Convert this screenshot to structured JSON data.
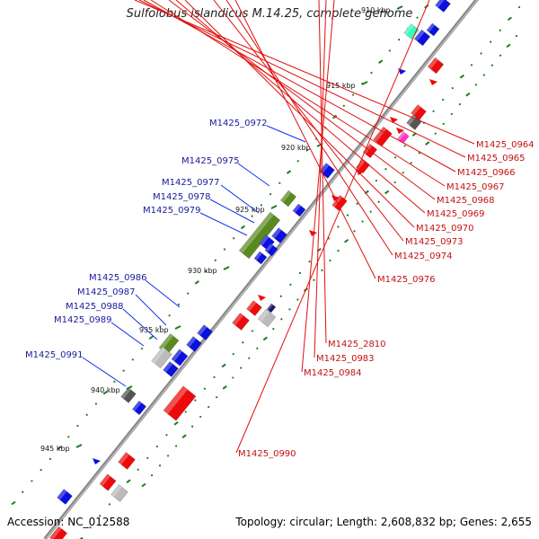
{
  "title": "Sulfolobus islandicus M.14.25, complete genome",
  "footer": {
    "accession": "Accession: NC_012588",
    "topology": "Topology: circular; Length: 2,608,832 bp; Genes: 2,655"
  },
  "colors": {
    "backbone": "#8a8a8a",
    "forward_gene": "#0a10e0",
    "reverse_gene": "#ee0a0a",
    "rna_gene": "#5a8a1e",
    "pseudo_gene": "#bbbbbb",
    "dark_gene": "#555555",
    "magenta_gene": "#ff33cc",
    "teal_gene": "#33ffbb",
    "tick_green": "#1f7a1f",
    "label_left": "#1a1a9a",
    "label_right": "#c41010"
  },
  "kbp_ticks": [
    "910 kbp",
    "915 kbp",
    "920 kbp",
    "925 kbp",
    "930 kbp",
    "935 kbp",
    "940 kbp",
    "945 kbp"
  ],
  "left_labels": [
    "M1425_0972",
    "M1425_0975",
    "M1425_0977",
    "M1425_0978",
    "M1425_0979",
    "M1425_0986",
    "M1425_0987",
    "M1425_0988",
    "M1425_0989",
    "M1425_0991"
  ],
  "right_labels": [
    "M1425_0964",
    "M1425_0965",
    "M1425_0966",
    "M1425_0967",
    "M1425_0968",
    "M1425_0969",
    "M1425_0970",
    "M1425_0973",
    "M1425_0974",
    "M1425_0976",
    "M1425_2810",
    "M1425_0983",
    "M1425_0984",
    "M1425_0990"
  ]
}
